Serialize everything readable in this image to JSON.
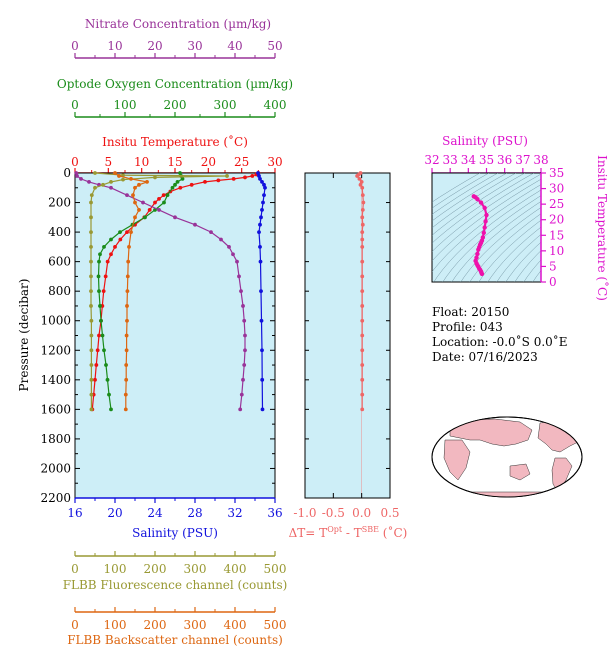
{
  "axes": {
    "nitrate": {
      "label": "Nitrate Concentration (µm/kg)",
      "ticks": [
        "0",
        "10",
        "20",
        "30",
        "40",
        "50"
      ],
      "min": 0,
      "max": 50,
      "color": "#993399"
    },
    "oxygen": {
      "label": "Optode Oxygen Concentration (µm/kg)",
      "ticks": [
        "0",
        "100",
        "200",
        "300",
        "400"
      ],
      "min": 0,
      "max": 400,
      "color": "#1a8c1a"
    },
    "temperature": {
      "label": "Insitu Temperature (˚C)",
      "ticks": [
        "0",
        "5",
        "10",
        "15",
        "20",
        "25",
        "30"
      ],
      "min": 0,
      "max": 30,
      "color": "#ee1111"
    },
    "salinity_bottom": {
      "label": "Salinity (PSU)",
      "ticks": [
        "16",
        "20",
        "24",
        "28",
        "32",
        "36"
      ],
      "min": 16,
      "max": 36,
      "color": "#1111dd"
    },
    "pressure": {
      "label": "Pressure (decibar)",
      "ticks": [
        "0",
        "200",
        "400",
        "600",
        "800",
        "1000",
        "1200",
        "1400",
        "1600",
        "1800",
        "2000",
        "2200"
      ],
      "min": 0,
      "max": 2200
    },
    "fluorescence": {
      "label": "FLBB Fluorescence channel (counts)",
      "ticks": [
        "0",
        "100",
        "200",
        "300",
        "400",
        "500"
      ],
      "min": 0,
      "max": 500,
      "color": "#999933"
    },
    "backscatter": {
      "label": "FLBB Backscatter channel (counts)",
      "ticks": [
        "0",
        "100",
        "200",
        "300",
        "400",
        "500"
      ],
      "min": 0,
      "max": 500,
      "color": "#dd6611"
    },
    "delta_t": {
      "label_prefix": "ΔT= T",
      "sup1": "Opt",
      "mid": " - T",
      "sup2": "SBE",
      "unit": " (˚C)",
      "ticks": [
        "-1.0",
        "-0.5",
        "0.0",
        "0.5"
      ],
      "min": -1.0,
      "max": 0.5,
      "color": "#ee6666"
    },
    "ts_salinity": {
      "label": "Salinity (PSU)",
      "ticks": [
        "32",
        "33",
        "34",
        "35",
        "36",
        "37",
        "38"
      ],
      "min": 32,
      "max": 38,
      "color": "#dd11cc"
    },
    "ts_temperature": {
      "label": "Insitu Temperature (˚C)",
      "ticks": [
        "0",
        "5",
        "10",
        "15",
        "20",
        "25",
        "30",
        "35"
      ],
      "min": 0,
      "max": 35,
      "color": "#dd11cc"
    }
  },
  "info": {
    "float": "Float:  20150",
    "profile": "Profile:  043",
    "location": "Location:  -0.0˚S   0.0˚E",
    "date": "Date:  07/16/2023"
  },
  "chart_data": [
    {
      "type": "line",
      "panel": "main profile",
      "y_axis": "Pressure (decibar)",
      "y_range": [
        2200,
        0
      ],
      "series": [
        {
          "name": "Insitu Temperature",
          "axis": "temperature",
          "color": "#ee1111",
          "points": [
            [
              27.5,
              0
            ],
            [
              27.2,
              10
            ],
            [
              26.6,
              20
            ],
            [
              25.5,
              30
            ],
            [
              23.8,
              40
            ],
            [
              21.5,
              50
            ],
            [
              19.5,
              60
            ],
            [
              17.5,
              80
            ],
            [
              15.8,
              100
            ],
            [
              14.3,
              125
            ],
            [
              13.3,
              150
            ],
            [
              12.6,
              175
            ],
            [
              12.0,
              200
            ],
            [
              11.2,
              250
            ],
            [
              10.4,
              300
            ],
            [
              9.0,
              350
            ],
            [
              7.8,
              400
            ],
            [
              6.8,
              450
            ],
            [
              6.0,
              500
            ],
            [
              5.4,
              550
            ],
            [
              4.9,
              600
            ],
            [
              4.6,
              700
            ],
            [
              4.3,
              800
            ],
            [
              4.1,
              900
            ],
            [
              3.9,
              1000
            ],
            [
              3.6,
              1100
            ],
            [
              3.4,
              1200
            ],
            [
              3.2,
              1300
            ],
            [
              3.0,
              1400
            ],
            [
              2.8,
              1500
            ],
            [
              2.6,
              1600
            ]
          ]
        },
        {
          "name": "Salinity",
          "axis": "salinity_bottom",
          "color": "#1111dd",
          "points": [
            [
              34.3,
              0
            ],
            [
              34.4,
              20
            ],
            [
              34.5,
              40
            ],
            [
              34.7,
              60
            ],
            [
              34.9,
              80
            ],
            [
              35.0,
              100
            ],
            [
              34.9,
              150
            ],
            [
              34.8,
              200
            ],
            [
              34.7,
              250
            ],
            [
              34.6,
              300
            ],
            [
              34.5,
              350
            ],
            [
              34.4,
              400
            ],
            [
              34.5,
              500
            ],
            [
              34.55,
              600
            ],
            [
              34.6,
              800
            ],
            [
              34.65,
              1000
            ],
            [
              34.7,
              1200
            ],
            [
              34.72,
              1400
            ],
            [
              34.75,
              1600
            ]
          ]
        },
        {
          "name": "Oxygen",
          "axis": "oxygen",
          "color": "#1a8c1a",
          "points": [
            [
              210,
              0
            ],
            [
              212,
              20
            ],
            [
              215,
              40
            ],
            [
              205,
              60
            ],
            [
              200,
              80
            ],
            [
              195,
              100
            ],
            [
              185,
              150
            ],
            [
              178,
              200
            ],
            [
              160,
              250
            ],
            [
              140,
              300
            ],
            [
              115,
              350
            ],
            [
              90,
              400
            ],
            [
              72,
              450
            ],
            [
              58,
              500
            ],
            [
              50,
              550
            ],
            [
              48,
              600
            ],
            [
              47,
              700
            ],
            [
              48,
              800
            ],
            [
              50,
              900
            ],
            [
              52,
              1000
            ],
            [
              55,
              1100
            ],
            [
              58,
              1200
            ],
            [
              62,
              1300
            ],
            [
              65,
              1400
            ],
            [
              68,
              1500
            ],
            [
              72,
              1600
            ]
          ]
        },
        {
          "name": "Nitrate",
          "axis": "nitrate",
          "color": "#993399",
          "points": [
            [
              0.3,
              0
            ],
            [
              0.5,
              20
            ],
            [
              1.5,
              40
            ],
            [
              3.5,
              60
            ],
            [
              6,
              80
            ],
            [
              9,
              100
            ],
            [
              13,
              150
            ],
            [
              17,
              200
            ],
            [
              21,
              250
            ],
            [
              25,
              300
            ],
            [
              30,
              350
            ],
            [
              34,
              400
            ],
            [
              36.5,
              450
            ],
            [
              38.5,
              500
            ],
            [
              39.5,
              550
            ],
            [
              40.5,
              600
            ],
            [
              41,
              700
            ],
            [
              41.5,
              800
            ],
            [
              42,
              900
            ],
            [
              42.3,
              1000
            ],
            [
              42.5,
              1100
            ],
            [
              42.5,
              1200
            ],
            [
              42.3,
              1300
            ],
            [
              42,
              1400
            ],
            [
              41.7,
              1500
            ],
            [
              41.3,
              1600
            ]
          ]
        },
        {
          "name": "Fluorescence",
          "axis": "fluorescence",
          "color": "#999933",
          "points": [
            [
              50,
              0
            ],
            [
              120,
              15
            ],
            [
              380,
              20
            ],
            [
              200,
              30
            ],
            [
              120,
              45
            ],
            [
              90,
              60
            ],
            [
              70,
              80
            ],
            [
              50,
              100
            ],
            [
              42,
              150
            ],
            [
              40,
              200
            ],
            [
              40,
              300
            ],
            [
              40,
              400
            ],
            [
              40,
              500
            ],
            [
              40,
              600
            ],
            [
              40,
              700
            ],
            [
              40,
              800
            ],
            [
              40,
              900
            ],
            [
              41,
              1000
            ],
            [
              41,
              1100
            ],
            [
              41,
              1200
            ],
            [
              41,
              1300
            ],
            [
              41,
              1400
            ],
            [
              41,
              1500
            ],
            [
              41,
              1600
            ]
          ]
        },
        {
          "name": "Backscatter",
          "axis": "backscatter",
          "color": "#dd6611",
          "points": [
            [
              100,
              0
            ],
            [
              110,
              20
            ],
            [
              140,
              40
            ],
            [
              180,
              60
            ],
            [
              160,
              80
            ],
            [
              150,
              100
            ],
            [
              145,
              150
            ],
            [
              150,
              200
            ],
            [
              160,
              250
            ],
            [
              150,
              300
            ],
            [
              140,
              400
            ],
            [
              135,
              500
            ],
            [
              133,
              600
            ],
            [
              132,
              700
            ],
            [
              131,
              800
            ],
            [
              130,
              900
            ],
            [
              130,
              1000
            ],
            [
              129,
              1100
            ],
            [
              129,
              1200
            ],
            [
              128,
              1300
            ],
            [
              128,
              1400
            ],
            [
              127,
              1500
            ],
            [
              127,
              1600
            ]
          ]
        }
      ]
    },
    {
      "type": "line",
      "panel": "delta T",
      "y_range": [
        2200,
        0
      ],
      "series": [
        {
          "name": "ΔT",
          "color": "#ee6666",
          "points": [
            [
              -0.02,
              0
            ],
            [
              -0.05,
              10
            ],
            [
              -0.08,
              20
            ],
            [
              -0.04,
              40
            ],
            [
              0.0,
              60
            ],
            [
              -0.02,
              80
            ],
            [
              0.01,
              100
            ],
            [
              0.02,
              150
            ],
            [
              0.03,
              200
            ],
            [
              0.02,
              250
            ],
            [
              0.01,
              300
            ],
            [
              0.02,
              350
            ],
            [
              0.01,
              400
            ],
            [
              0.01,
              450
            ],
            [
              0.01,
              500
            ],
            [
              0.01,
              600
            ],
            [
              0.01,
              700
            ],
            [
              0.01,
              800
            ],
            [
              0.01,
              900
            ],
            [
              0.01,
              1000
            ],
            [
              0.01,
              1100
            ],
            [
              0.01,
              1200
            ],
            [
              0.01,
              1300
            ],
            [
              0.01,
              1400
            ],
            [
              0.01,
              1500
            ],
            [
              0.01,
              1600
            ]
          ]
        }
      ]
    },
    {
      "type": "scatter",
      "panel": "T-S diagram",
      "x_range": [
        32,
        38
      ],
      "y_range": [
        0,
        35
      ],
      "series": [
        {
          "name": "T-S",
          "color": "#ee11aa",
          "points": [
            [
              34.75,
              2.6
            ],
            [
              34.72,
              3.0
            ],
            [
              34.7,
              3.4
            ],
            [
              34.65,
              3.9
            ],
            [
              34.6,
              4.3
            ],
            [
              34.55,
              4.9
            ],
            [
              34.5,
              5.4
            ],
            [
              34.45,
              6.0
            ],
            [
              34.4,
              6.8
            ],
            [
              34.45,
              7.8
            ],
            [
              34.5,
              9.0
            ],
            [
              34.55,
              10.4
            ],
            [
              34.6,
              11.2
            ],
            [
              34.65,
              12.0
            ],
            [
              34.7,
              12.6
            ],
            [
              34.75,
              13.3
            ],
            [
              34.8,
              14.3
            ],
            [
              34.85,
              15.8
            ],
            [
              34.9,
              17.5
            ],
            [
              34.95,
              19.5
            ],
            [
              35.0,
              21.5
            ],
            [
              34.9,
              23.8
            ],
            [
              34.7,
              25.5
            ],
            [
              34.5,
              26.6
            ],
            [
              34.4,
              27.2
            ],
            [
              34.3,
              27.5
            ]
          ]
        }
      ]
    }
  ]
}
